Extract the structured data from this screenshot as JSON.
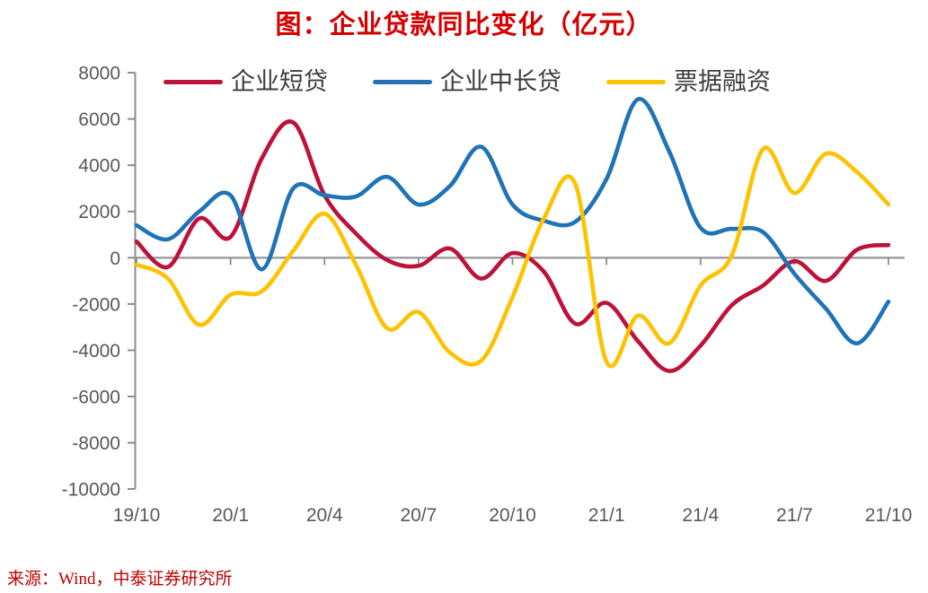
{
  "title": "图：企业贷款同比变化（亿元）",
  "source": "来源：Wind，中泰证券研究所",
  "colors": {
    "series_red": "#bd1239",
    "series_blue": "#1f73b6",
    "series_yellow": "#fdc200",
    "axis": "#8c8c8c",
    "zero_line": "#9b9b9b",
    "tick_text": "#595959",
    "title_text": "#d40000",
    "source_text": "#c00000",
    "legend_text": "#3d3d3d"
  },
  "chart_data": {
    "type": "line",
    "smooth": true,
    "grid": false,
    "legend_position": "top",
    "x": [
      "19/10",
      "19/11",
      "19/12",
      "20/1",
      "20/2",
      "20/3",
      "20/4",
      "20/5",
      "20/6",
      "20/7",
      "20/8",
      "20/9",
      "20/10",
      "20/11",
      "20/12",
      "21/1",
      "21/2",
      "21/3",
      "21/4",
      "21/5",
      "21/6",
      "21/7",
      "21/8",
      "21/9",
      "21/10"
    ],
    "x_tick_labels": [
      "19/10",
      "20/1",
      "20/4",
      "20/7",
      "20/10",
      "21/1",
      "21/4",
      "21/7",
      "21/10"
    ],
    "y_ticks": [
      8000,
      6000,
      4000,
      2000,
      0,
      -2000,
      -4000,
      -6000,
      -8000,
      -10000
    ],
    "ylim": [
      -10000,
      8000
    ],
    "ylabel": "",
    "xlabel": "",
    "series": [
      {
        "name": "企业短贷",
        "color_key": "series_red",
        "values": [
          700,
          -400,
          1700,
          900,
          4300,
          5850,
          2700,
          1050,
          -100,
          -350,
          400,
          -900,
          200,
          -600,
          -2850,
          -1950,
          -3600,
          -4900,
          -3800,
          -2050,
          -1200,
          -150,
          -1000,
          350,
          550
        ]
      },
      {
        "name": "企业中长贷",
        "color_key": "series_blue",
        "values": [
          1400,
          800,
          2000,
          2700,
          -500,
          3000,
          2700,
          2650,
          3500,
          2300,
          3100,
          4800,
          2300,
          1600,
          1550,
          3400,
          6850,
          4600,
          1300,
          1250,
          1100,
          -700,
          -2200,
          -3700,
          -1900
        ]
      },
      {
        "name": "票据融资",
        "color_key": "series_yellow",
        "values": [
          -300,
          -900,
          -2900,
          -1600,
          -1450,
          300,
          1900,
          -300,
          -3050,
          -2350,
          -4100,
          -4450,
          -1700,
          1700,
          3200,
          -4500,
          -2500,
          -3700,
          -1200,
          100,
          4700,
          2800,
          4500,
          3700,
          2300
        ]
      }
    ]
  }
}
